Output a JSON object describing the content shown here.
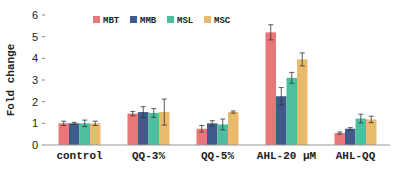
{
  "chart_data": {
    "type": "bar",
    "y_label": "Fold change",
    "categories": [
      "control",
      "QQ-3%",
      "QQ-5%",
      "AHL-20 μM",
      "AHL-QQ"
    ],
    "series": [
      {
        "name": "MBT",
        "color": "#e8777a",
        "values": [
          1.0,
          1.45,
          0.75,
          5.2,
          0.55
        ],
        "errors": [
          0.1,
          0.1,
          0.15,
          0.35,
          0.05
        ]
      },
      {
        "name": "MMB",
        "color": "#3f5b8c",
        "values": [
          1.0,
          1.52,
          1.0,
          2.25,
          0.75
        ],
        "errors": [
          0.05,
          0.25,
          0.12,
          0.4,
          0.05
        ]
      },
      {
        "name": "MSL",
        "color": "#4dbf9f",
        "values": [
          1.0,
          1.48,
          0.95,
          3.1,
          1.22
        ],
        "errors": [
          0.15,
          0.2,
          0.25,
          0.25,
          0.2
        ]
      },
      {
        "name": "MSC",
        "color": "#e9b96c",
        "values": [
          1.0,
          1.52,
          1.52,
          3.95,
          1.18
        ],
        "errors": [
          0.1,
          0.6,
          0.05,
          0.3,
          0.15
        ]
      }
    ],
    "ylim": [
      0,
      6
    ],
    "yticks": [
      0,
      1,
      2,
      3,
      4,
      5,
      6
    ],
    "grid": false,
    "legend": "top-left"
  }
}
